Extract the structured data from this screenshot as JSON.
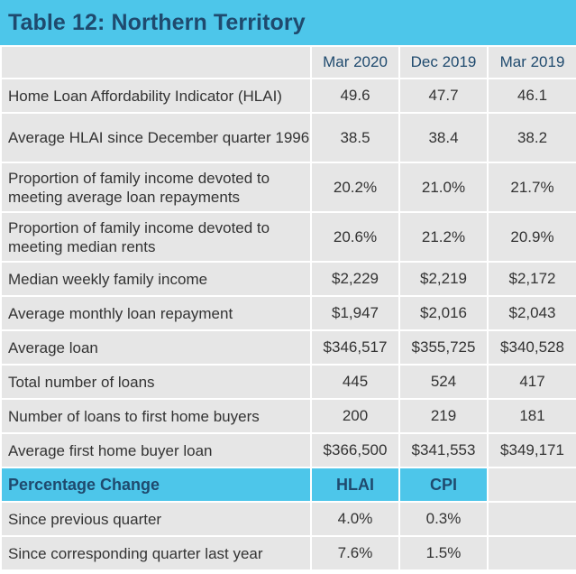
{
  "title": "Table 12: Northern Territory",
  "columns": [
    "Mar 2020",
    "Dec 2019",
    "Mar 2019"
  ],
  "rows": [
    {
      "label": "Home Loan Affordability Indicator (HLAI)",
      "values": [
        "49.6",
        "47.7",
        "46.1"
      ]
    },
    {
      "label": "Average HLAI since December quarter 1996",
      "values": [
        "38.5",
        "38.4",
        "38.2"
      ]
    },
    {
      "label": "Proportion of family income devoted to meeting average loan repayments",
      "values": [
        "20.2%",
        "21.0%",
        "21.7%"
      ]
    },
    {
      "label": "Proportion of family income devoted to meeting median rents",
      "values": [
        "20.6%",
        "21.2%",
        "20.9%"
      ]
    },
    {
      "label": "Median weekly family income",
      "values": [
        "$2,229",
        "$2,219",
        "$2,172"
      ]
    },
    {
      "label": "Average monthly loan repayment",
      "values": [
        "$1,947",
        "$2,016",
        "$2,043"
      ]
    },
    {
      "label": "Average loan",
      "values": [
        "$346,517",
        "$355,725",
        "$340,528"
      ]
    },
    {
      "label": "Total number of loans",
      "values": [
        "445",
        "524",
        "417"
      ]
    },
    {
      "label": "Number of loans to first home buyers",
      "values": [
        "200",
        "219",
        "181"
      ]
    },
    {
      "label": "Average first home buyer loan",
      "values": [
        "$366,500",
        "$341,553",
        "$349,171"
      ]
    }
  ],
  "percentage_change": {
    "label": "Percentage Change",
    "columns": [
      "HLAI",
      "CPI"
    ],
    "rows": [
      {
        "label": "Since previous quarter",
        "values": [
          "4.0%",
          "0.3%"
        ]
      },
      {
        "label": "Since corresponding quarter last year",
        "values": [
          "7.6%",
          "1.5%"
        ]
      }
    ]
  },
  "colors": {
    "header_bar": "#4dc6ea",
    "heading_text": "#1f4a6e",
    "cell_bg": "#e6e6e6",
    "cell_text": "#333333"
  }
}
